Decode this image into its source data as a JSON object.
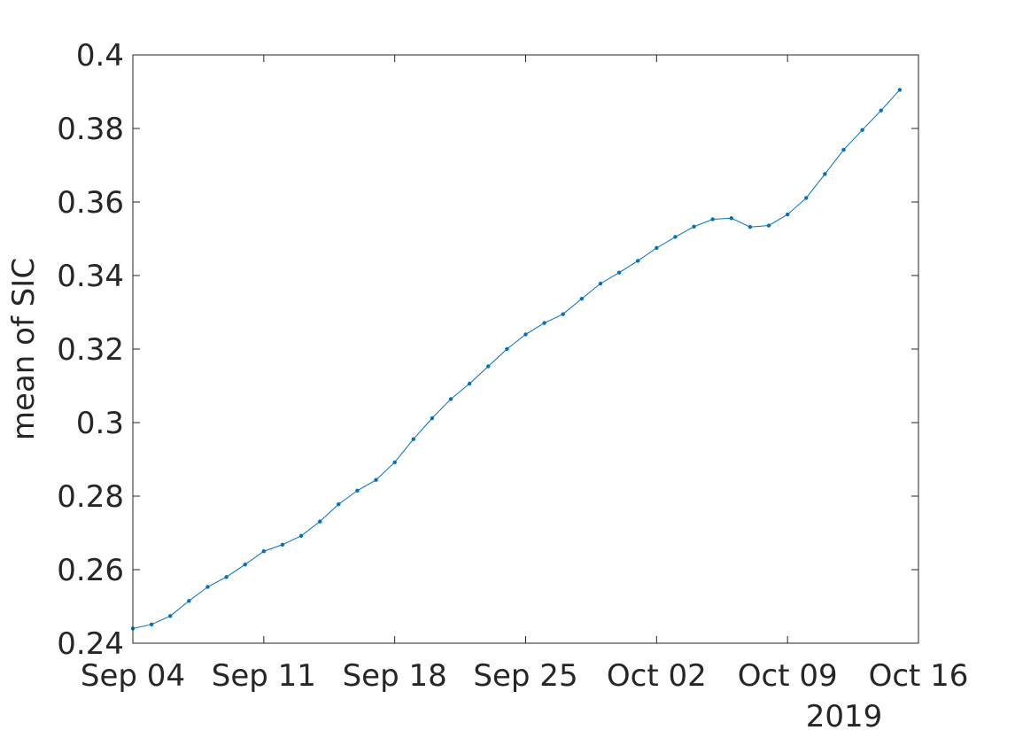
{
  "chart_data": {
    "type": "line",
    "xlabel": "",
    "ylabel": "mean of SIC",
    "year_label": "2019",
    "xlim": [
      "2019-09-04",
      "2019-10-16"
    ],
    "ylim": [
      0.24,
      0.4
    ],
    "grid": false,
    "box": true,
    "marker": "dot",
    "line_color": "#0072bd",
    "x_ticks": [
      {
        "date": "2019-09-04",
        "label": "Sep 04"
      },
      {
        "date": "2019-09-11",
        "label": "Sep 11"
      },
      {
        "date": "2019-09-18",
        "label": "Sep 18"
      },
      {
        "date": "2019-09-25",
        "label": "Sep 25"
      },
      {
        "date": "2019-10-02",
        "label": "Oct 02"
      },
      {
        "date": "2019-10-09",
        "label": "Oct 09"
      },
      {
        "date": "2019-10-16",
        "label": "Oct 16"
      }
    ],
    "y_ticks": [
      {
        "value": 0.24,
        "label": "0.24"
      },
      {
        "value": 0.26,
        "label": "0.26"
      },
      {
        "value": 0.28,
        "label": "0.28"
      },
      {
        "value": 0.3,
        "label": "0.3"
      },
      {
        "value": 0.32,
        "label": "0.32"
      },
      {
        "value": 0.34,
        "label": "0.34"
      },
      {
        "value": 0.36,
        "label": "0.36"
      },
      {
        "value": 0.38,
        "label": "0.38"
      },
      {
        "value": 0.4,
        "label": "0.4"
      }
    ],
    "series": [
      {
        "x": [
          "2019-09-04",
          "2019-09-05",
          "2019-09-06",
          "2019-09-07",
          "2019-09-08",
          "2019-09-09",
          "2019-09-10",
          "2019-09-11",
          "2019-09-12",
          "2019-09-13",
          "2019-09-14",
          "2019-09-15",
          "2019-09-16",
          "2019-09-17",
          "2019-09-18",
          "2019-09-19",
          "2019-09-20",
          "2019-09-21",
          "2019-09-22",
          "2019-09-23",
          "2019-09-24",
          "2019-09-25",
          "2019-09-26",
          "2019-09-27",
          "2019-09-28",
          "2019-09-29",
          "2019-09-30",
          "2019-10-01",
          "2019-10-02",
          "2019-10-03",
          "2019-10-04",
          "2019-10-05",
          "2019-10-06",
          "2019-10-07",
          "2019-10-08",
          "2019-10-09",
          "2019-10-10",
          "2019-10-11",
          "2019-10-12",
          "2019-10-13",
          "2019-10-14",
          "2019-10-15"
        ],
        "values": [
          0.244,
          0.2451,
          0.2474,
          0.2515,
          0.2553,
          0.258,
          0.2614,
          0.265,
          0.2668,
          0.2692,
          0.2731,
          0.2778,
          0.2815,
          0.2844,
          0.2892,
          0.2955,
          0.3012,
          0.3064,
          0.3106,
          0.3153,
          0.32,
          0.324,
          0.3271,
          0.3295,
          0.3337,
          0.3378,
          0.3408,
          0.344,
          0.3475,
          0.3505,
          0.3533,
          0.3553,
          0.3556,
          0.3532,
          0.3536,
          0.3566,
          0.3611,
          0.3676,
          0.3742,
          0.3796,
          0.3849,
          0.3905
        ]
      }
    ]
  }
}
